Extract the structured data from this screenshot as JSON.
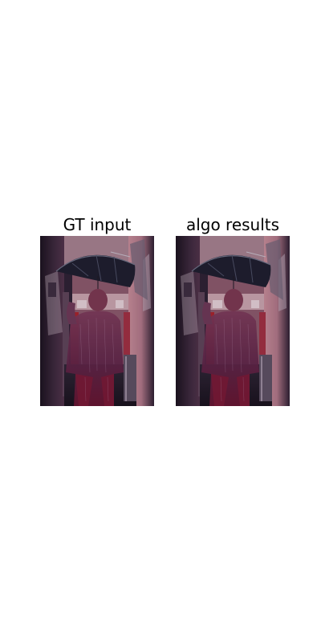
{
  "figure": {
    "panels": [
      {
        "title": "GT input"
      },
      {
        "title": "algo results"
      }
    ]
  },
  "colors": {
    "background": "#ffffff",
    "mask_overlay": "#7a1030",
    "scene_wall": "#b57a86",
    "scene_dark": "#15121c"
  }
}
